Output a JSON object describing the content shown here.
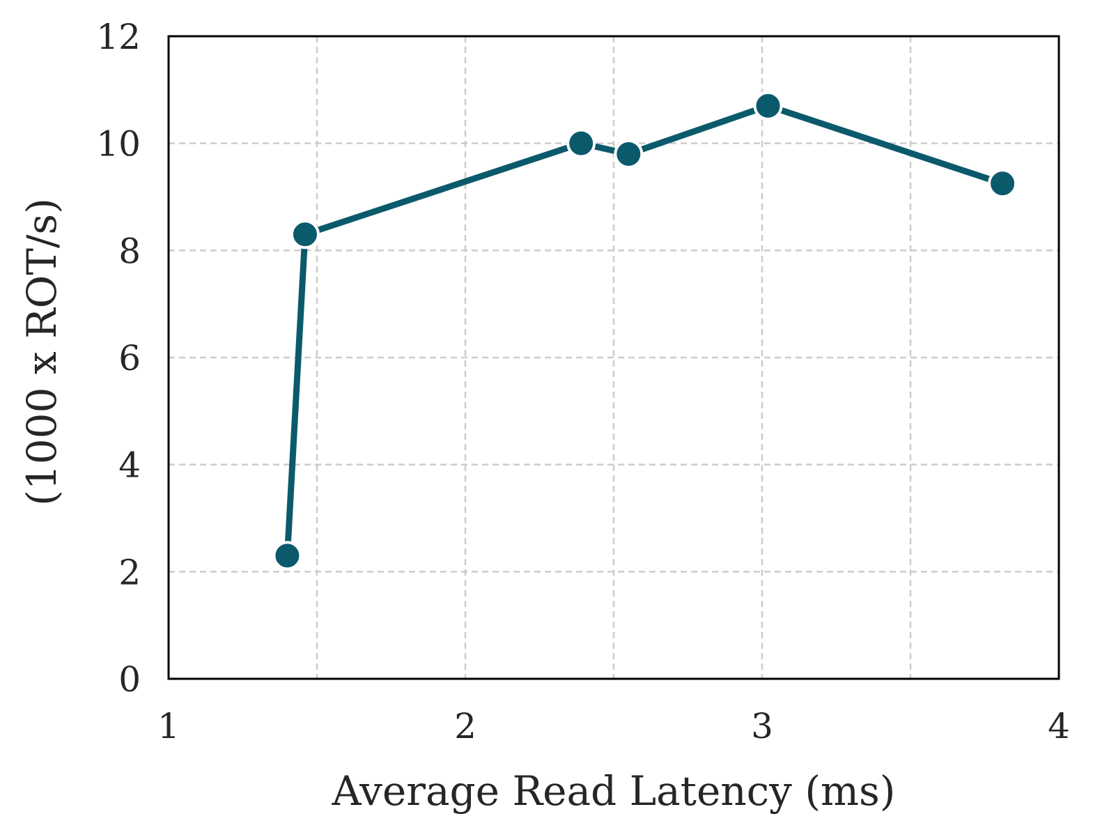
{
  "chart_data": {
    "type": "line",
    "title": "",
    "xlabel": "Average Read Latency (ms)",
    "ylabel": "(1000 x ROT/s)",
    "xlim": [
      1,
      4
    ],
    "ylim": [
      0,
      12
    ],
    "xticks": [
      1,
      2,
      3,
      4
    ],
    "xtick_labels": [
      "1",
      "2",
      "3",
      "4"
    ],
    "xgrid": [
      1.5,
      2,
      2.5,
      3,
      3.5
    ],
    "yticks": [
      0,
      2,
      4,
      6,
      8,
      10,
      12
    ],
    "ytick_labels": [
      "0",
      "2",
      "4",
      "6",
      "8",
      "10",
      "12"
    ],
    "grid": true,
    "grid_style": "dashed",
    "legend": "none",
    "series": [
      {
        "color": "#0b5a6b",
        "x": [
          1.4,
          1.46,
          2.39,
          2.55,
          3.02,
          3.81
        ],
        "y": [
          2.3,
          8.3,
          10.0,
          9.8,
          10.7,
          9.25
        ]
      }
    ]
  }
}
